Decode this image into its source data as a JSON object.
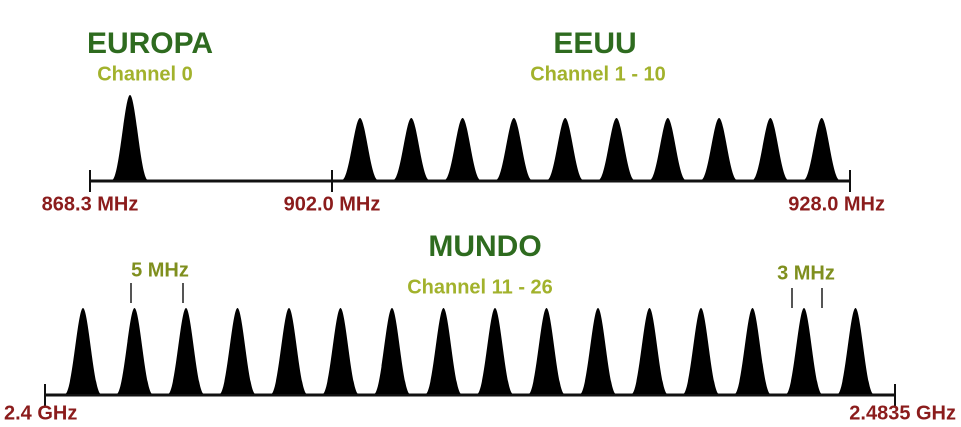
{
  "europe": {
    "title": "EUROPA",
    "subtitle": "Channel 0"
  },
  "usa": {
    "title": "EEUU",
    "subtitle": "Channel 1 - 10"
  },
  "world": {
    "title": "MUNDO",
    "subtitle": "Channel 11 - 26",
    "spacing_label": "5 MHz",
    "width_label": "3 MHz"
  },
  "frequencies": {
    "top": [
      "868.3 MHz",
      "902.0 MHz",
      "928.0 MHz"
    ],
    "bottom": [
      "2.4 GHz",
      "2.4835 GHz"
    ]
  }
}
